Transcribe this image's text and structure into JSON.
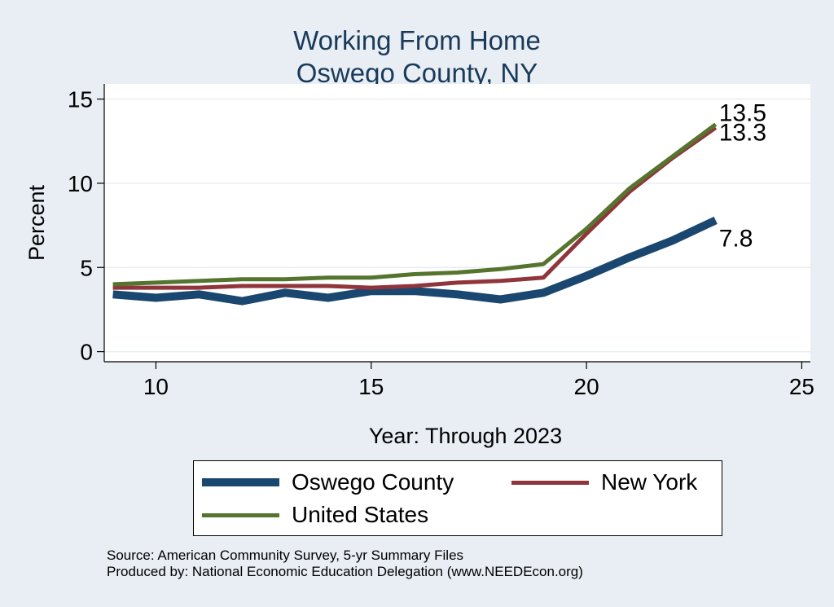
{
  "title_line1": "Working From Home",
  "title_line2": "Oswego County, NY",
  "source_line1": "Source: American Community Survey, 5-yr Summary Files",
  "source_line2": "Produced by: National Economic Education Delegation (www.NEEDEcon.org)",
  "chart_data": {
    "type": "line",
    "title": "Working From Home\nOswego County, NY",
    "xlabel": "Year: Through 2023",
    "ylabel": "Percent",
    "xlim": [
      8.8,
      25.2
    ],
    "ylim": [
      -0.6,
      15.9
    ],
    "xticks": [
      10,
      15,
      20,
      25
    ],
    "yticks": [
      0,
      5,
      10,
      15
    ],
    "grid": true,
    "legend_position": "bottom",
    "x": [
      9,
      10,
      11,
      12,
      13,
      14,
      15,
      16,
      17,
      18,
      19,
      20,
      21,
      22,
      23
    ],
    "series": [
      {
        "name": "Oswego County",
        "color": "#1a476f",
        "values": [
          3.4,
          3.2,
          3.4,
          3.0,
          3.5,
          3.2,
          3.6,
          3.6,
          3.4,
          3.1,
          3.5,
          4.5,
          5.6,
          6.6,
          7.8
        ],
        "end_label": "7.8"
      },
      {
        "name": "New York",
        "color": "#90353b",
        "values": [
          3.8,
          3.8,
          3.8,
          3.9,
          3.9,
          3.9,
          3.8,
          3.9,
          4.1,
          4.2,
          4.4,
          7.0,
          9.5,
          11.5,
          13.3
        ],
        "end_label": "13.3"
      },
      {
        "name": "United States",
        "color": "#55752f",
        "values": [
          4.0,
          4.1,
          4.2,
          4.3,
          4.3,
          4.4,
          4.4,
          4.6,
          4.7,
          4.9,
          5.2,
          7.3,
          9.7,
          11.6,
          13.5
        ],
        "end_label": "13.5"
      }
    ]
  }
}
